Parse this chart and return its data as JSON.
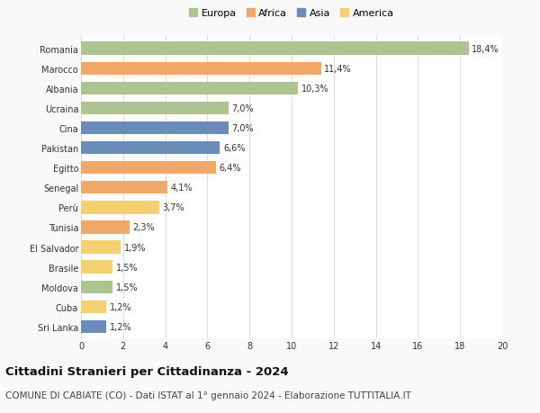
{
  "countries": [
    "Sri Lanka",
    "Cuba",
    "Moldova",
    "Brasile",
    "El Salvador",
    "Tunisia",
    "Perù",
    "Senegal",
    "Egitto",
    "Pakistan",
    "Cina",
    "Ucraina",
    "Albania",
    "Marocco",
    "Romania"
  ],
  "values": [
    1.2,
    1.2,
    1.5,
    1.5,
    1.9,
    2.3,
    3.7,
    4.1,
    6.4,
    6.6,
    7.0,
    7.0,
    10.3,
    11.4,
    18.4
  ],
  "labels": [
    "1,2%",
    "1,2%",
    "1,5%",
    "1,5%",
    "1,9%",
    "2,3%",
    "3,7%",
    "4,1%",
    "6,4%",
    "6,6%",
    "7,0%",
    "7,0%",
    "10,3%",
    "11,4%",
    "18,4%"
  ],
  "continents": [
    "Asia",
    "America",
    "Europa",
    "America",
    "America",
    "Africa",
    "America",
    "Africa",
    "Africa",
    "Asia",
    "Asia",
    "Europa",
    "Europa",
    "Africa",
    "Europa"
  ],
  "continent_colors": {
    "Europa": "#adc490",
    "Africa": "#f0a868",
    "Asia": "#6b8cba",
    "America": "#f5d070"
  },
  "legend_order": [
    "Europa",
    "Africa",
    "Asia",
    "America"
  ],
  "title": "Cittadini Stranieri per Cittadinanza - 2024",
  "subtitle": "COMUNE DI CABIATE (CO) - Dati ISTAT al 1° gennaio 2024 - Elaborazione TUTTITALIA.IT",
  "xlim": [
    0,
    20
  ],
  "xticks": [
    0,
    2,
    4,
    6,
    8,
    10,
    12,
    14,
    16,
    18,
    20
  ],
  "background_color": "#f9f9f9",
  "bar_background": "#ffffff",
  "grid_color": "#dddddd",
  "title_fontsize": 9.5,
  "subtitle_fontsize": 7.5,
  "label_fontsize": 7,
  "tick_fontsize": 7,
  "legend_fontsize": 8
}
